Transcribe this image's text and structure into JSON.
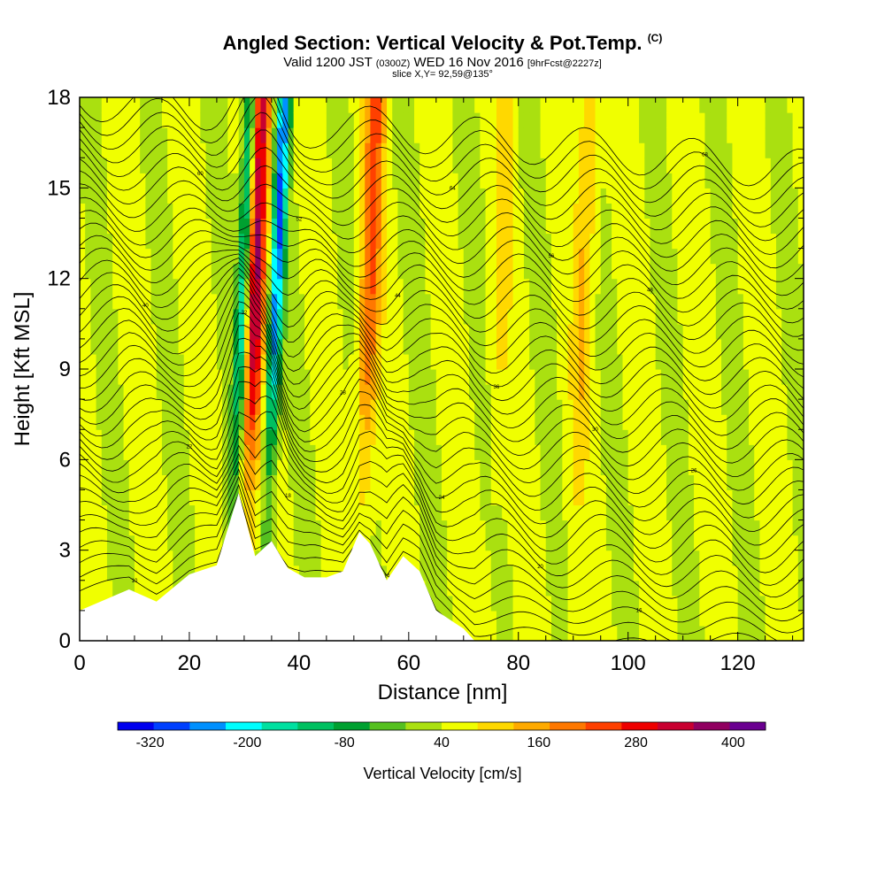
{
  "chart_data": {
    "type": "heatmap",
    "title": "Angled Section: Vertical Velocity & Pot.Temp.",
    "title_unit": "(C)",
    "subtitle": {
      "prefix": "Valid 1200 JST",
      "utc": "(0300Z)",
      "date": "WED 16 Nov 2016",
      "forecast": "[9hrFcst@2227z]"
    },
    "slice_label": "slice X,Y= 92,59@135°",
    "xlabel": "Distance [nm]",
    "ylabel": "Height [Kft MSL]",
    "xlim": [
      0,
      132
    ],
    "ylim": [
      0,
      18
    ],
    "x_ticks": [
      "0",
      "20",
      "40",
      "60",
      "80",
      "100",
      "120"
    ],
    "y_ticks": [
      "0",
      "3",
      "6",
      "9",
      "12",
      "15",
      "18"
    ],
    "colorbar": {
      "label": "Vertical Velocity [cm/s]",
      "tick_labels": [
        "-320",
        "-200",
        "-80",
        "40",
        "160",
        "280",
        "400"
      ],
      "min": -360,
      "max": 440,
      "step": 40,
      "colors": [
        "#0000ee",
        "#0040ff",
        "#0090ff",
        "#00ffff",
        "#00e0a0",
        "#00c060",
        "#00a030",
        "#55c020",
        "#aae010",
        "#f0ff00",
        "#ffd800",
        "#ffaa00",
        "#ff7800",
        "#ff4000",
        "#ee0000",
        "#c80030",
        "#900060",
        "#6a0090"
      ]
    },
    "terrain_kft": [
      [
        0,
        1
      ],
      [
        9,
        1.7
      ],
      [
        14,
        1.3
      ],
      [
        20,
        2.2
      ],
      [
        25,
        2.5
      ],
      [
        29,
        4.9
      ],
      [
        32,
        2.8
      ],
      [
        35,
        3.3
      ],
      [
        38,
        2.4
      ],
      [
        41,
        2.1
      ],
      [
        45,
        2.1
      ],
      [
        48,
        2.3
      ],
      [
        51,
        3.6
      ],
      [
        53,
        3.2
      ],
      [
        56,
        2.0
      ],
      [
        59,
        2.8
      ],
      [
        62,
        2.3
      ],
      [
        65,
        1.0
      ],
      [
        70,
        0.4
      ],
      [
        72,
        0
      ],
      [
        132,
        0
      ]
    ],
    "updraft_bands": [
      {
        "x": 32,
        "top_w": 280
      },
      {
        "x": 53,
        "top_w": 160
      },
      {
        "x": 77,
        "top_w": 40
      },
      {
        "x": 92,
        "top_w": 80
      }
    ],
    "downdraft_bands": [
      {
        "x": 30,
        "w": -240
      },
      {
        "x": 36,
        "w": -280
      }
    ],
    "theta_contour_labels": [
      "10",
      "14",
      "16",
      "18",
      "20",
      "22",
      "24",
      "26",
      "28",
      "30",
      "32",
      "36",
      "40",
      "44",
      "48",
      "52",
      "56",
      "60",
      "64",
      "68",
      "72"
    ]
  }
}
